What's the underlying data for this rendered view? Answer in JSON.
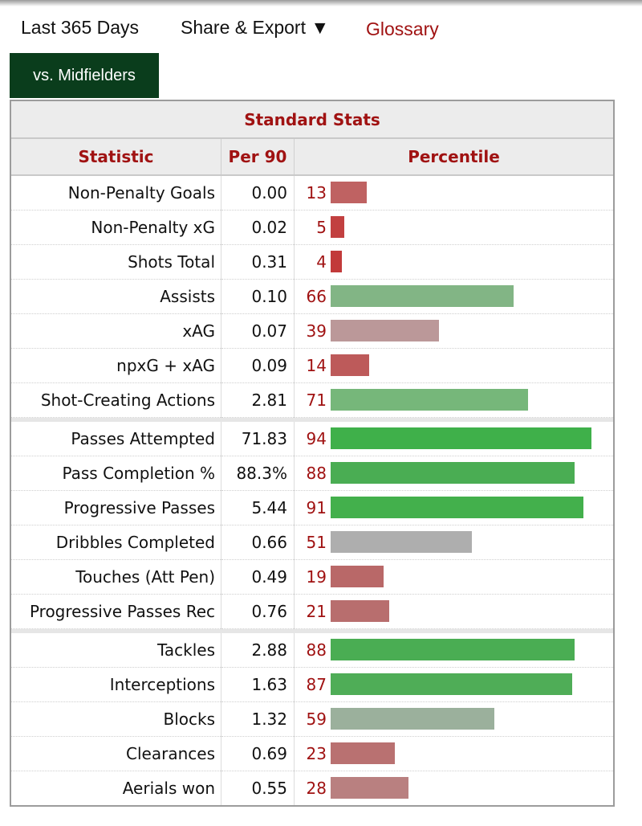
{
  "topbar": {
    "period": "Last 365 Days",
    "share": "Share & Export ▼",
    "glossary": "Glossary"
  },
  "tab": {
    "label": "vs. Midfielders"
  },
  "table": {
    "title": "Standard Stats",
    "headers": {
      "statistic": "Statistic",
      "per90": "Per 90",
      "percentile": "Percentile"
    },
    "groups": [
      [
        {
          "stat": "Non-Penalty Goals",
          "per90": "0.00",
          "percentile": 13,
          "color": "#bf6262"
        },
        {
          "stat": "Non-Penalty xG",
          "per90": "0.02",
          "percentile": 5,
          "color": "#c24040"
        },
        {
          "stat": "Shots Total",
          "per90": "0.31",
          "percentile": 4,
          "color": "#c23a3a"
        },
        {
          "stat": "Assists",
          "per90": "0.10",
          "percentile": 66,
          "color": "#82b585"
        },
        {
          "stat": "xAG",
          "per90": "0.07",
          "percentile": 39,
          "color": "#bb9899"
        },
        {
          "stat": "npxG + xAG",
          "per90": "0.09",
          "percentile": 14,
          "color": "#bd5a5a"
        },
        {
          "stat": "Shot-Creating Actions",
          "per90": "2.81",
          "percentile": 71,
          "color": "#76b77a"
        }
      ],
      [
        {
          "stat": "Passes Attempted",
          "per90": "71.83",
          "percentile": 94,
          "color": "#3fb04a"
        },
        {
          "stat": "Pass Completion %",
          "per90": "88.3%",
          "percentile": 88,
          "color": "#4aad53"
        },
        {
          "stat": "Progressive Passes",
          "per90": "5.44",
          "percentile": 91,
          "color": "#43b04c"
        },
        {
          "stat": "Dribbles Completed",
          "per90": "0.66",
          "percentile": 51,
          "color": "#aeaeae"
        },
        {
          "stat": "Touches (Att Pen)",
          "per90": "0.49",
          "percentile": 19,
          "color": "#b96868"
        },
        {
          "stat": "Progressive Passes Rec",
          "per90": "0.76",
          "percentile": 21,
          "color": "#b86e6e"
        }
      ],
      [
        {
          "stat": "Tackles",
          "per90": "2.88",
          "percentile": 88,
          "color": "#4aad53"
        },
        {
          "stat": "Interceptions",
          "per90": "1.63",
          "percentile": 87,
          "color": "#4fad57"
        },
        {
          "stat": "Blocks",
          "per90": "1.32",
          "percentile": 59,
          "color": "#9bb09c"
        },
        {
          "stat": "Clearances",
          "per90": "0.69",
          "percentile": 23,
          "color": "#b97171"
        },
        {
          "stat": "Aerials won",
          "per90": "0.55",
          "percentile": 28,
          "color": "#b98080"
        }
      ]
    ]
  }
}
